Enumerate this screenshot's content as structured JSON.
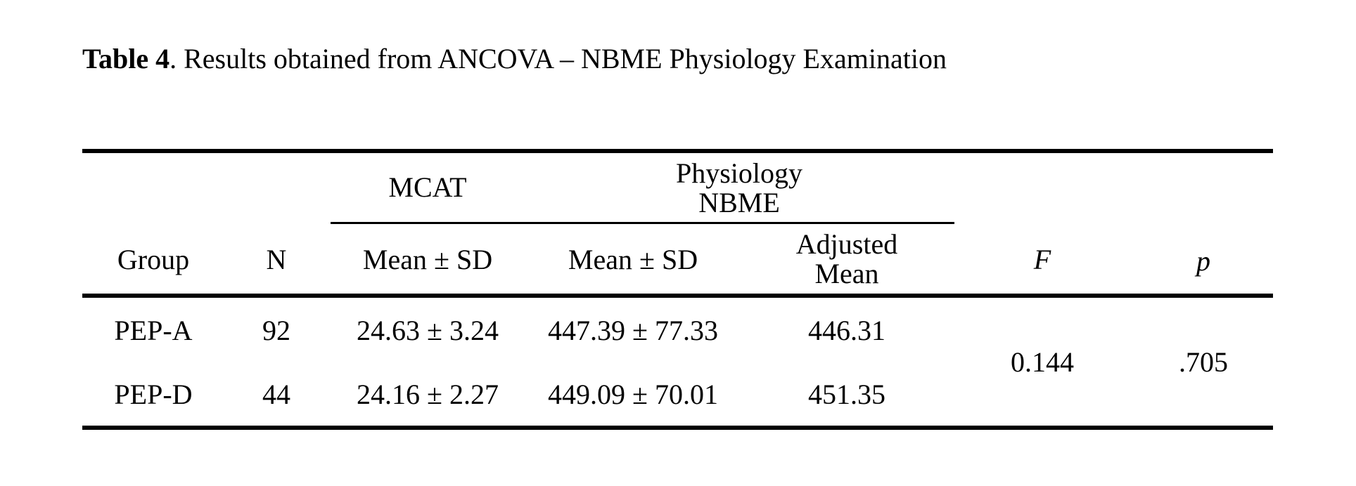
{
  "caption": {
    "label": "Table 4",
    "text": ".  Results obtained from ANCOVA – NBME Physiology Examination"
  },
  "header": {
    "group_mcat": "MCAT",
    "group_physiology_line1": "Physiology",
    "group_physiology_line2": "NBME",
    "col_group": "Group",
    "col_n": "N",
    "col_mcat_mean": "Mean ± SD",
    "col_nbme_mean": "Mean ± SD",
    "col_adjusted_line1": "Adjusted",
    "col_adjusted_line2": "Mean",
    "col_f": "F",
    "col_p": "p"
  },
  "rows": [
    {
      "group": "PEP-A",
      "n": "92",
      "mcat": "24.63 ± 3.24",
      "nbme": "447.39 ± 77.33",
      "adjusted": "446.31"
    },
    {
      "group": "PEP-D",
      "n": "44",
      "mcat": "24.16 ± 2.27",
      "nbme": "449.09 ± 70.01",
      "adjusted": "451.35"
    }
  ],
  "stats": {
    "f": "0.144",
    "p": ".705"
  }
}
